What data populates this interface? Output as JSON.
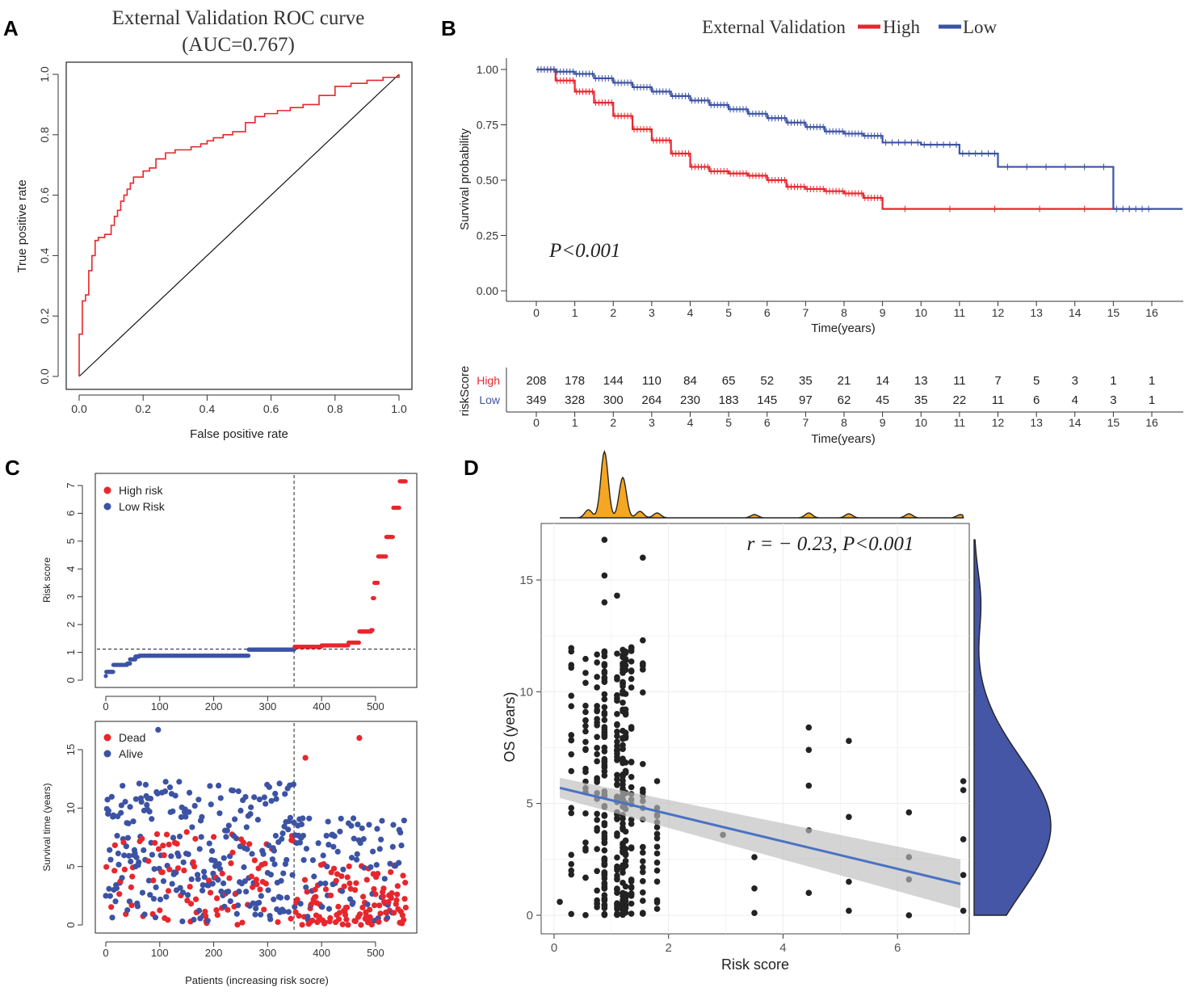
{
  "colors": {
    "high": "#e8262d",
    "low": "#3c53a4",
    "dark": "#222222",
    "density_top": "#f5a623",
    "density_right": "#4556a6",
    "fit_line": "#4a72c4",
    "ci_band": "#bdbdbd"
  },
  "panels": {
    "a": "A",
    "b": "B",
    "c": "C",
    "d": "D"
  },
  "chart_data": [
    {
      "id": "A",
      "type": "line",
      "title": "External Validation ROC curve",
      "subtitle": "(AUC=0.767)",
      "xlabel": "False positive rate",
      "ylabel": "True positive rate",
      "xlim": [
        0,
        1
      ],
      "ylim": [
        0,
        1
      ],
      "xticks": [
        "0.0",
        "0.2",
        "0.4",
        "0.6",
        "0.8",
        "1.0"
      ],
      "yticks": [
        "0.0",
        "0.2",
        "0.4",
        "0.6",
        "0.8",
        "1.0"
      ],
      "series": [
        {
          "name": "ROC",
          "x": [
            0,
            0,
            0.01,
            0.01,
            0.02,
            0.02,
            0.03,
            0.03,
            0.04,
            0.05,
            0.05,
            0.06,
            0.07,
            0.08,
            0.1,
            0.11,
            0.12,
            0.13,
            0.14,
            0.15,
            0.16,
            0.17,
            0.18,
            0.2,
            0.22,
            0.24,
            0.27,
            0.3,
            0.32,
            0.35,
            0.38,
            0.4,
            0.42,
            0.45,
            0.48,
            0.52,
            0.55,
            0.58,
            0.62,
            0.66,
            0.7,
            0.75,
            0.8,
            0.85,
            0.9,
            0.95,
            1.0
          ],
          "y": [
            0,
            0.14,
            0.14,
            0.25,
            0.26,
            0.27,
            0.3,
            0.35,
            0.4,
            0.42,
            0.45,
            0.46,
            0.46,
            0.47,
            0.5,
            0.53,
            0.55,
            0.58,
            0.6,
            0.62,
            0.64,
            0.66,
            0.66,
            0.68,
            0.69,
            0.72,
            0.74,
            0.75,
            0.75,
            0.76,
            0.77,
            0.78,
            0.79,
            0.8,
            0.81,
            0.84,
            0.86,
            0.87,
            0.88,
            0.89,
            0.9,
            0.93,
            0.96,
            0.97,
            0.98,
            0.99,
            1.0
          ]
        },
        {
          "name": "Reference",
          "x": [
            0,
            1
          ],
          "y": [
            0,
            1
          ]
        }
      ]
    },
    {
      "id": "B",
      "type": "line",
      "legend_title": "External Validation",
      "legend": [
        "High",
        "Low"
      ],
      "xlabel": "Time(years)",
      "ylabel": "Survival probability",
      "annotation": "P<0.001",
      "xlim": [
        0,
        16
      ],
      "ylim": [
        0,
        1
      ],
      "xticks": [
        "0",
        "1",
        "2",
        "3",
        "4",
        "5",
        "6",
        "7",
        "8",
        "9",
        "10",
        "11",
        "12",
        "13",
        "14",
        "15",
        "16"
      ],
      "yticks": [
        "0.00",
        "0.25",
        "0.50",
        "0.75",
        "1.00"
      ],
      "series": [
        {
          "name": "High",
          "x": [
            0,
            0.5,
            1,
            1.5,
            2,
            2.5,
            3,
            3.5,
            4,
            4.5,
            5,
            5.5,
            6,
            6.5,
            7,
            7.5,
            8,
            8.5,
            9,
            16
          ],
          "y": [
            1.0,
            0.95,
            0.9,
            0.85,
            0.79,
            0.73,
            0.68,
            0.62,
            0.56,
            0.54,
            0.53,
            0.52,
            0.5,
            0.47,
            0.46,
            0.45,
            0.44,
            0.42,
            0.37,
            0.37
          ]
        },
        {
          "name": "Low",
          "x": [
            0,
            0.5,
            1,
            1.5,
            2,
            2.5,
            3,
            3.5,
            4,
            4.5,
            5,
            5.5,
            6,
            6.5,
            7,
            7.5,
            8,
            8.5,
            9,
            10,
            11,
            12,
            15,
            16
          ],
          "y": [
            1.0,
            0.99,
            0.98,
            0.96,
            0.94,
            0.92,
            0.9,
            0.88,
            0.86,
            0.84,
            0.82,
            0.8,
            0.78,
            0.76,
            0.74,
            0.72,
            0.71,
            0.7,
            0.67,
            0.66,
            0.62,
            0.56,
            0.37,
            0.37
          ]
        }
      ],
      "risk_table": {
        "ylabel": "riskScore",
        "xlabel": "Time(years)",
        "rows": [
          {
            "label": "High",
            "values": [
              "208",
              "178",
              "144",
              "110",
              "84",
              "65",
              "52",
              "35",
              "21",
              "14",
              "13",
              "11",
              "7",
              "5",
              "3",
              "1",
              "1"
            ]
          },
          {
            "label": "Low",
            "values": [
              "349",
              "328",
              "300",
              "264",
              "230",
              "183",
              "145",
              "97",
              "62",
              "45",
              "35",
              "22",
              "11",
              "6",
              "4",
              "3",
              "1"
            ]
          }
        ]
      }
    },
    {
      "id": "C-top",
      "type": "scatter",
      "xlabel": "",
      "ylabel": "Risk score",
      "legend": [
        "High risk",
        "Low Risk"
      ],
      "xlim": [
        0,
        557
      ],
      "ylim": [
        0,
        7.2
      ],
      "xticks": [
        "0",
        "100",
        "200",
        "300",
        "400",
        "500"
      ],
      "yticks": [
        "0",
        "1",
        "2",
        "3",
        "4",
        "5",
        "6",
        "7"
      ],
      "cutoff_x": 349,
      "cutoff_y": 1.12,
      "low_steps": [
        [
          0,
          0.15
        ],
        [
          1,
          0.3
        ],
        [
          10,
          0.3
        ],
        [
          14,
          0.55
        ],
        [
          40,
          0.6
        ],
        [
          45,
          0.75
        ],
        [
          55,
          0.85
        ],
        [
          62,
          0.88
        ],
        [
          262,
          0.88
        ],
        [
          265,
          1.1
        ],
        [
          349,
          1.1
        ]
      ],
      "high_steps": [
        [
          350,
          1.2
        ],
        [
          400,
          1.25
        ],
        [
          450,
          1.35
        ],
        [
          470,
          1.75
        ],
        [
          492,
          1.8
        ],
        [
          495,
          2.95
        ],
        [
          498,
          3.5
        ],
        [
          505,
          4.45
        ],
        [
          520,
          5.15
        ],
        [
          533,
          6.2
        ],
        [
          545,
          7.15
        ],
        [
          557,
          7.15
        ]
      ]
    },
    {
      "id": "C-bottom",
      "type": "scatter",
      "xlabel": "Patients (increasing risk socre)",
      "ylabel": "Survival time (years)",
      "legend": [
        "Dead",
        "Alive"
      ],
      "xlim": [
        0,
        557
      ],
      "ylim": [
        0,
        17
      ],
      "xticks": [
        "0",
        "100",
        "200",
        "300",
        "400",
        "500"
      ],
      "yticks": [
        "0",
        "5",
        "10",
        "15"
      ],
      "cutoff_x": 349,
      "n_dead": 208,
      "n_alive": 349
    },
    {
      "id": "D",
      "type": "scatter",
      "annotation": "r = − 0.23, P<0.001",
      "xlabel": "Risk score",
      "ylabel": "OS (years)",
      "xlim": [
        0,
        7.2
      ],
      "ylim": [
        0,
        17
      ],
      "xticks": [
        "0",
        "2",
        "4",
        "6"
      ],
      "yticks": [
        "0",
        "5",
        "10",
        "15"
      ],
      "fit": {
        "x": [
          0.1,
          7.1
        ],
        "y": [
          5.7,
          1.4
        ]
      },
      "score_levels": [
        0.1,
        0.3,
        0.55,
        0.75,
        0.88,
        1.1,
        1.2,
        1.25,
        1.35,
        1.55,
        1.8,
        2.95,
        3.5,
        4.45,
        5.15,
        6.2,
        7.15
      ],
      "points": [
        [
          0.1,
          0.6
        ],
        [
          0.3,
          2.0
        ],
        [
          0.3,
          4.8
        ],
        [
          0.3,
          7.2
        ],
        [
          0.3,
          11.2
        ],
        [
          0.55,
          3.0
        ],
        [
          0.55,
          5.5
        ],
        [
          0.55,
          7.4
        ],
        [
          0.55,
          10.4
        ],
        [
          0.88,
          16.8
        ],
        [
          0.88,
          15.2
        ],
        [
          0.88,
          14.0
        ],
        [
          1.1,
          14.3
        ],
        [
          1.55,
          16.0
        ],
        [
          1.55,
          12.3
        ],
        [
          1.55,
          11.0
        ],
        [
          1.8,
          6.0
        ],
        [
          1.8,
          2.0
        ],
        [
          2.95,
          3.6
        ],
        [
          3.5,
          2.6
        ],
        [
          3.5,
          1.2
        ],
        [
          3.5,
          0.1
        ],
        [
          4.45,
          8.4
        ],
        [
          4.45,
          7.4
        ],
        [
          4.45,
          5.8
        ],
        [
          4.45,
          3.8
        ],
        [
          4.45,
          1.0
        ],
        [
          5.15,
          7.8
        ],
        [
          5.15,
          4.4
        ],
        [
          5.15,
          1.5
        ],
        [
          5.15,
          0.2
        ],
        [
          6.2,
          4.6
        ],
        [
          6.2,
          2.6
        ],
        [
          6.2,
          1.6
        ],
        [
          6.2,
          0.0
        ],
        [
          7.15,
          6.0
        ],
        [
          7.15,
          5.6
        ],
        [
          7.15,
          3.4
        ],
        [
          7.15,
          1.8
        ],
        [
          7.15,
          0.2
        ]
      ]
    }
  ]
}
